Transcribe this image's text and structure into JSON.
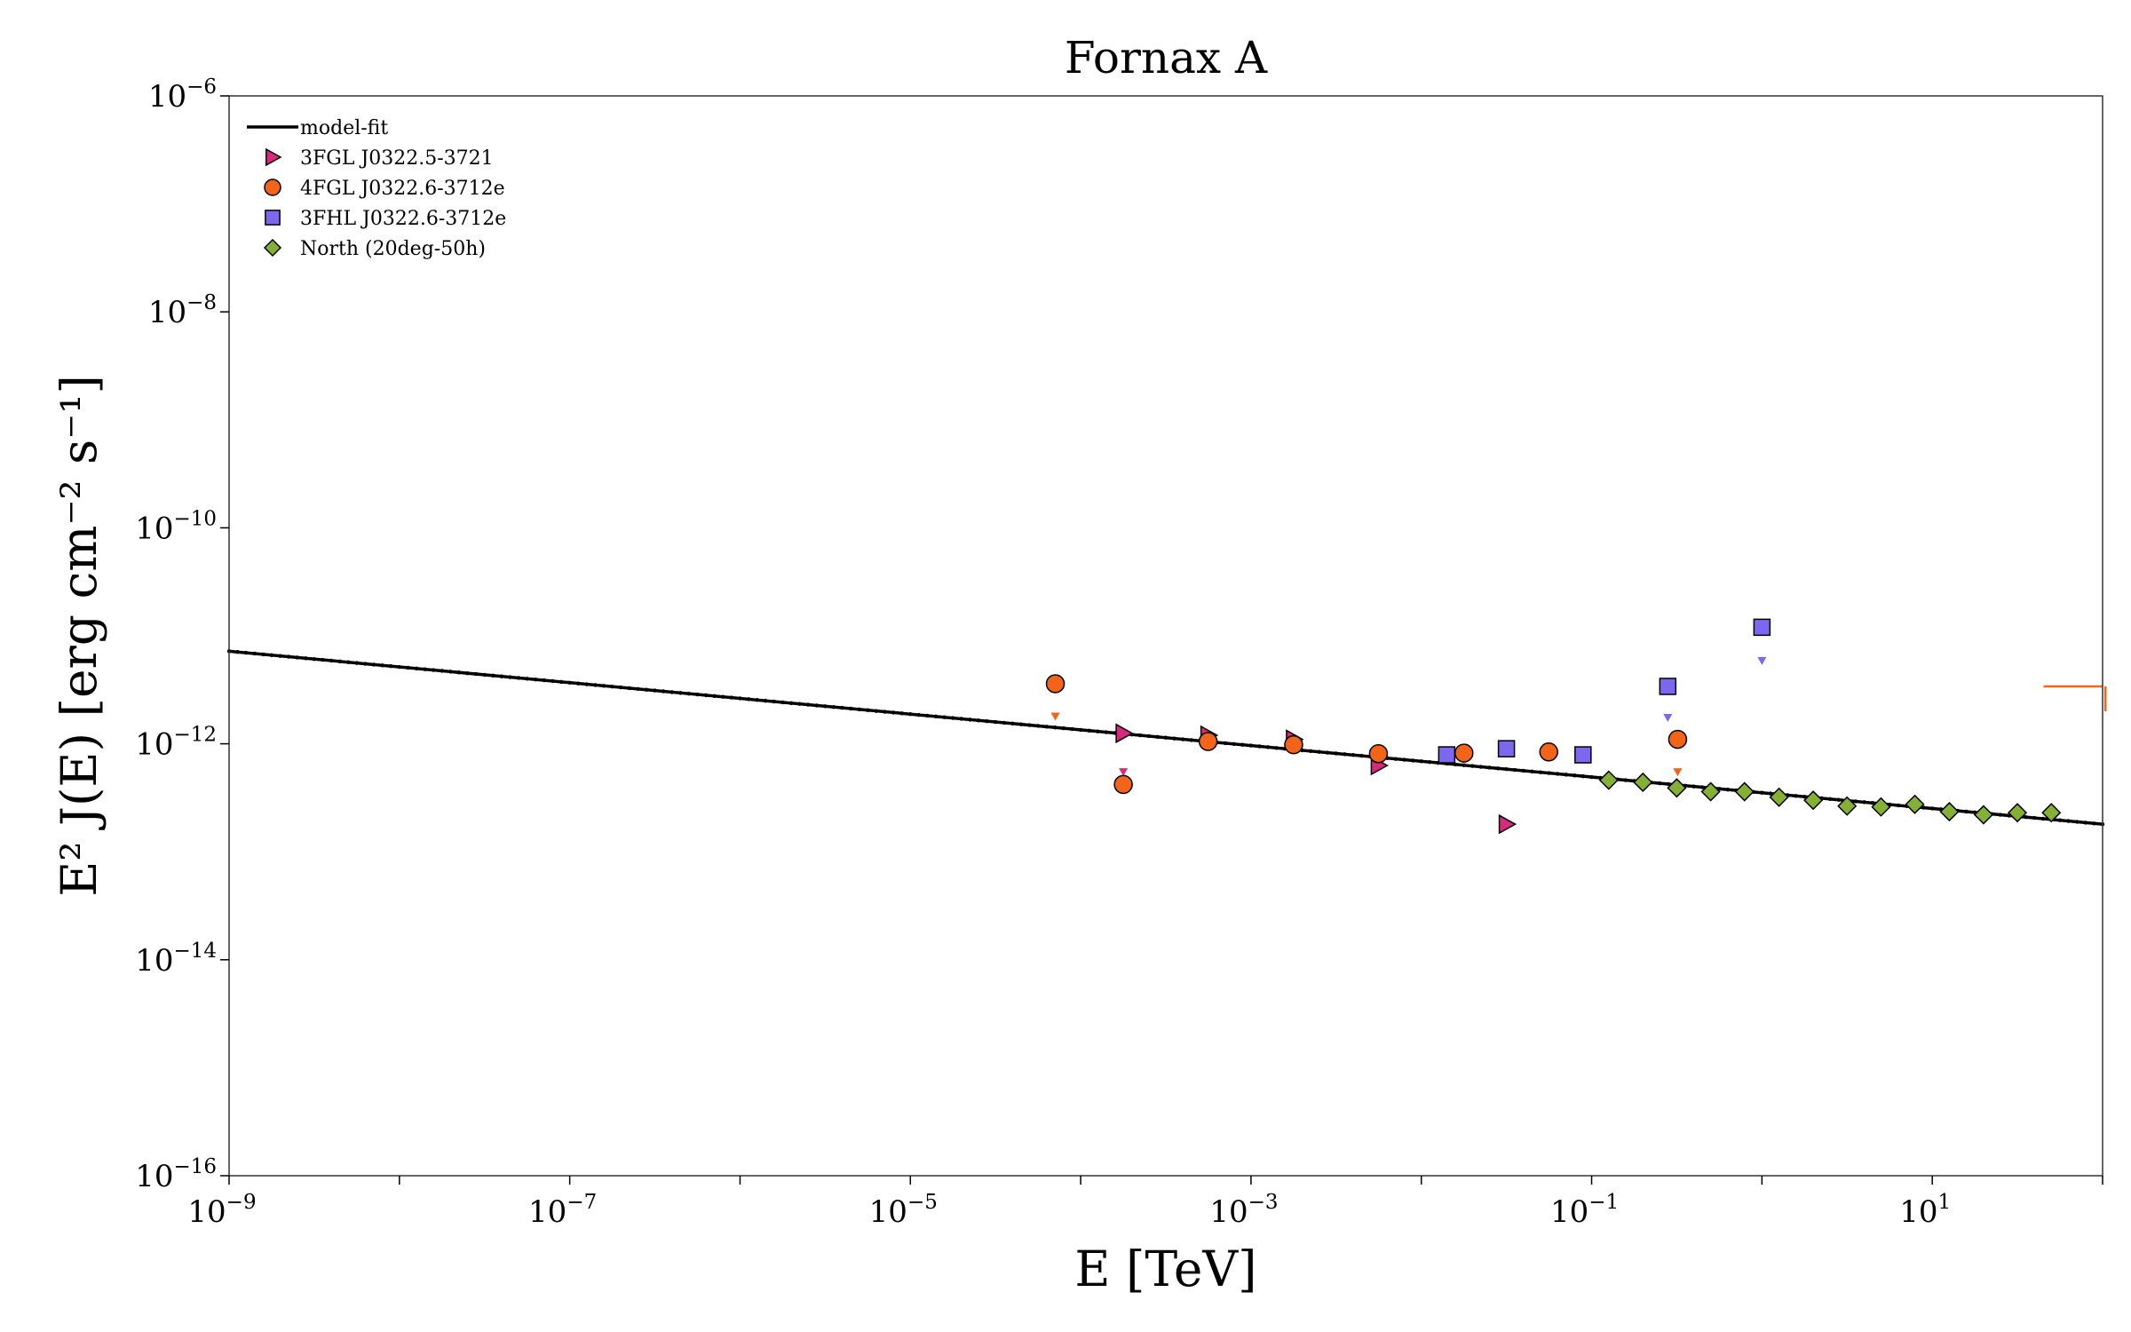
{
  "chart_data": {
    "type": "scatter",
    "title": "Fornax A",
    "xlabel": "E [TeV]",
    "ylabel": "E² J(E) [erg cm⁻² s⁻¹]",
    "xscale": "log",
    "yscale": "log",
    "xlim": [
      1e-09,
      100
    ],
    "ylim": [
      1e-16,
      1e-06
    ],
    "grid": false,
    "legend_position": "top-left",
    "x_tick_labels": [
      {
        "base": "10",
        "exp": "−9",
        "value": 1e-09
      },
      {
        "base": "10",
        "exp": "−7",
        "value": 1e-07
      },
      {
        "base": "10",
        "exp": "−5",
        "value": 1e-05
      },
      {
        "base": "10",
        "exp": "−3",
        "value": 0.001
      },
      {
        "base": "10",
        "exp": "−1",
        "value": 0.1
      },
      {
        "base": "10",
        "exp": "1",
        "value": 10
      }
    ],
    "y_tick_labels": [
      {
        "base": "10",
        "exp": "−16",
        "value": 1e-16
      },
      {
        "base": "10",
        "exp": "−14",
        "value": 1e-14
      },
      {
        "base": "10",
        "exp": "−12",
        "value": 1e-12
      },
      {
        "base": "10",
        "exp": "−10",
        "value": 1e-10
      },
      {
        "base": "10",
        "exp": "−8",
        "value": 1e-08
      },
      {
        "base": "10",
        "exp": "−6",
        "value": 1e-06
      }
    ],
    "series": [
      {
        "name": "model-fit",
        "kind": "line",
        "color": "#000000",
        "x": [
          1e-09,
          100
        ],
        "y": [
          7.2e-12,
          1.8e-13
        ]
      },
      {
        "name": "3FGL J0322.5-3721",
        "kind": "triangle-right",
        "color": "#d62a7c",
        "x": [
          0.000178,
          0.00056,
          0.00178,
          0.0056,
          0.0316
        ],
        "y": [
          1.25e-12,
          1.2e-12,
          1.1e-12,
          6.3e-13,
          1.8e-13
        ],
        "upper_limit_markers": [
          {
            "x": 0.000178,
            "y": 5.5e-13
          }
        ]
      },
      {
        "name": "4FGL J0322.6-3712e",
        "kind": "circle",
        "color": "#f26419",
        "x": [
          7.1e-05,
          0.000178,
          0.00056,
          0.00178,
          0.0056,
          0.0178,
          0.056,
          0.32
        ],
        "y": [
          3.6e-12,
          4.2e-13,
          1.05e-12,
          9.8e-13,
          8.1e-13,
          8.2e-13,
          8.4e-13,
          1.1e-12
        ],
        "upper_limit_markers": [
          {
            "x": 7.1e-05,
            "y": 1.8e-12
          },
          {
            "x": 0.32,
            "y": 5.5e-13
          }
        ],
        "upper_limit_bracket": {
          "x": [
            45,
            100
          ],
          "y": 3.4e-12,
          "y_low": 2e-12
        }
      },
      {
        "name": "3FHL J0322.6-3712e",
        "kind": "square",
        "color": "#7b68ee",
        "x": [
          0.0141,
          0.0316,
          0.089,
          0.28,
          1.0
        ],
        "y": [
          7.9e-13,
          9e-13,
          7.9e-13,
          3.4e-12,
          1.2e-11
        ],
        "upper_limit_markers": [
          {
            "x": 0.28,
            "y": 1.75e-12
          },
          {
            "x": 1.0,
            "y": 5.9e-12
          }
        ]
      },
      {
        "name": "North (20deg-50h)",
        "kind": "diamond",
        "color": "#84b135",
        "x": [
          0.126,
          0.2,
          0.316,
          0.5,
          0.79,
          1.26,
          2.0,
          3.16,
          5.0,
          7.9,
          12.6,
          20.0,
          31.6,
          50.0
        ],
        "y": [
          4.6e-13,
          4.4e-13,
          3.9e-13,
          3.6e-13,
          3.6e-13,
          3.2e-13,
          3e-13,
          2.65e-13,
          2.6e-13,
          2.75e-13,
          2.35e-13,
          2.2e-13,
          2.3e-13,
          2.3e-13
        ]
      }
    ]
  }
}
